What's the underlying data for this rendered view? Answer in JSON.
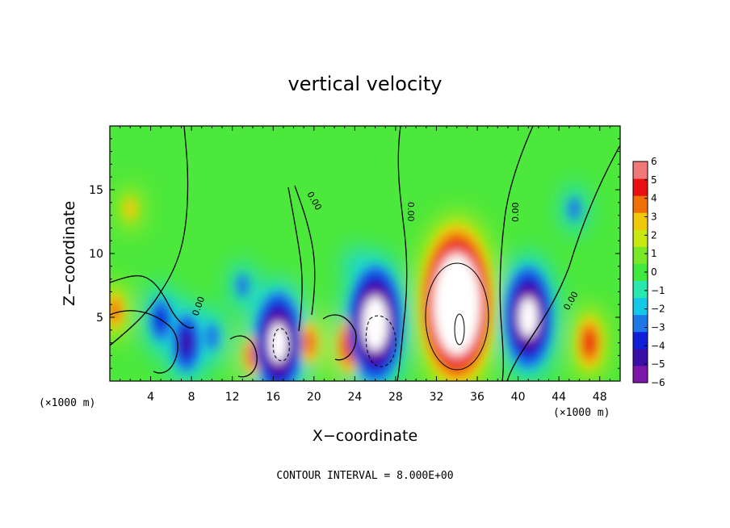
{
  "chart_data": {
    "type": "heatmap",
    "title": "vertical velocity",
    "xlabel": "X−coordinate",
    "ylabel": "Z−coordinate",
    "x_units_left": "(×1000 m)",
    "x_units_right": "(×1000 m)",
    "contour_interval_text": "CONTOUR INTERVAL = 8.000E+00",
    "x_range": [
      0,
      50
    ],
    "y_range": [
      0,
      20
    ],
    "x_ticks": [
      4,
      8,
      12,
      16,
      20,
      24,
      28,
      32,
      36,
      40,
      44,
      48
    ],
    "x_tick_labels": [
      "4",
      "8",
      "12",
      "16",
      "20",
      "24",
      "28",
      "32",
      "36",
      "40",
      "44",
      "48"
    ],
    "y_ticks": [
      5,
      10,
      15
    ],
    "y_tick_labels": [
      "5",
      "10",
      "15"
    ],
    "colorbar": {
      "min": -6,
      "max": 6,
      "ticks": [
        6,
        5,
        4,
        3,
        2,
        1,
        0,
        -1,
        -2,
        -3,
        -4,
        -5,
        -6
      ],
      "tick_labels": [
        "6",
        "5",
        "4",
        "3",
        "2",
        "1",
        "0",
        "−1",
        "−2",
        "−3",
        "−4",
        "−5",
        "−6"
      ],
      "colors": [
        "#7b16a8",
        "#3a0fa8",
        "#0f1fd8",
        "#1f78e8",
        "#16c8e8",
        "#28e8b0",
        "#40e840",
        "#78e828",
        "#c8e810",
        "#f0c808",
        "#f07008",
        "#e81010",
        "#f07878"
      ]
    },
    "contour_labels": [
      "0.00",
      "0.00",
      "0.00",
      "0.00",
      "0.00"
    ],
    "features": [
      {
        "x": 34,
        "z": 6.0,
        "w": 12.0,
        "type": "updraft"
      },
      {
        "x": 2.0,
        "z": 13.5,
        "w": 2.5,
        "type": "updraft"
      },
      {
        "x": 0.5,
        "z": 5.5,
        "w": 3.5,
        "type": "updraft"
      },
      {
        "x": 23.5,
        "z": 2.8,
        "w": 5.0,
        "type": "updraft"
      },
      {
        "x": 19.5,
        "z": 3.0,
        "w": 4.0,
        "type": "updraft"
      },
      {
        "x": 14.0,
        "z": 2.0,
        "w": 4.0,
        "type": "updraft"
      },
      {
        "x": 47.0,
        "z": 3.0,
        "w": 4.5,
        "type": "updraft"
      },
      {
        "x": 17.8,
        "z": 6.0,
        "w": 2.0,
        "type": "updraft"
      },
      {
        "x": 26.0,
        "z": 4.5,
        "w": -9.0,
        "type": "downdraft"
      },
      {
        "x": 16.5,
        "z": 3.0,
        "w": -8.0,
        "type": "downdraft"
      },
      {
        "x": 41.0,
        "z": 5.0,
        "w": -8.0,
        "type": "downdraft"
      },
      {
        "x": 7.5,
        "z": 3.0,
        "w": -5.0,
        "type": "downdraft"
      },
      {
        "x": 5.0,
        "z": 4.8,
        "w": -4.0,
        "type": "downdraft"
      },
      {
        "x": 13.0,
        "z": 7.5,
        "w": -2.5,
        "type": "downdraft"
      },
      {
        "x": 10.0,
        "z": 3.5,
        "w": -3.0,
        "type": "downdraft"
      },
      {
        "x": 24.0,
        "z": 9.0,
        "w": -2.0,
        "type": "downdraft"
      },
      {
        "x": 45.5,
        "z": 13.5,
        "w": -2.5,
        "type": "downdraft"
      }
    ]
  }
}
